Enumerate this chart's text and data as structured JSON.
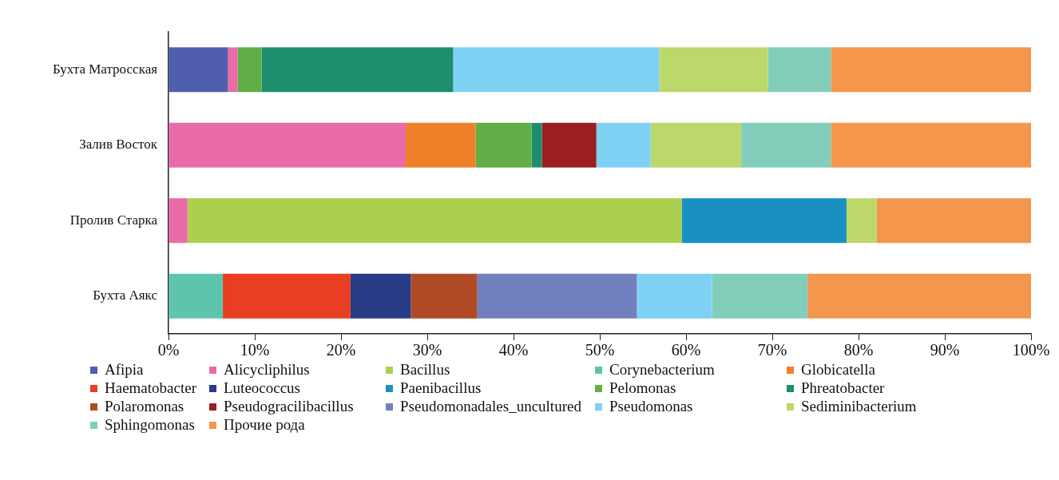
{
  "chart_data": {
    "type": "bar",
    "orientation": "horizontal",
    "stacked": true,
    "categories": [
      "Бухта Матросская",
      "Залив Восток",
      "Пролив Старка",
      "Бухта Аякс"
    ],
    "xlim": [
      0,
      100
    ],
    "xticks": [
      {
        "value": 0,
        "label": "0%"
      },
      {
        "value": 10,
        "label": "10%"
      },
      {
        "value": 20,
        "label": "20%"
      },
      {
        "value": 30,
        "label": "30%"
      },
      {
        "value": 40,
        "label": "40%"
      },
      {
        "value": 50,
        "label": "50%"
      },
      {
        "value": 60,
        "label": "60%"
      },
      {
        "value": 70,
        "label": "70%"
      },
      {
        "value": 80,
        "label": "80%"
      },
      {
        "value": 90,
        "label": "90%"
      },
      {
        "value": 100,
        "label": "100%"
      }
    ],
    "grid": false,
    "legend": "bottom",
    "series": [
      {
        "name": "Afipia",
        "color": "#4f5fad",
        "values": [
          6.9,
          null,
          null,
          null
        ]
      },
      {
        "name": "Alicycliphilus",
        "color": "#e96ba8",
        "values": [
          1.1,
          27.5,
          2.2,
          null
        ]
      },
      {
        "name": "Bacillus",
        "color": "#acd04e",
        "values": [
          null,
          null,
          57.3,
          null
        ]
      },
      {
        "name": "Corynebacterium",
        "color": "#5ec5ad",
        "values": [
          null,
          null,
          null,
          6.3
        ]
      },
      {
        "name": "Globicatella",
        "color": "#f07f2a",
        "values": [
          null,
          8.1,
          null,
          null
        ]
      },
      {
        "name": "Haematobacter",
        "color": "#e83e24",
        "values": [
          null,
          null,
          null,
          14.8
        ]
      },
      {
        "name": "Luteococcus",
        "color": "#283b85",
        "values": [
          null,
          null,
          null,
          7.0
        ]
      },
      {
        "name": "Paenibacillus",
        "color": "#1a8fc2",
        "values": [
          null,
          null,
          19.1,
          null
        ]
      },
      {
        "name": "Pelomonas",
        "color": "#62ad46",
        "values": [
          2.8,
          6.5,
          null,
          null
        ]
      },
      {
        "name": "Phreatobacter",
        "color": "#1d8d6e",
        "values": [
          22.2,
          1.2,
          null,
          null
        ]
      },
      {
        "name": "Polaromonas",
        "color": "#b04a26",
        "values": [
          null,
          null,
          null,
          7.7
        ]
      },
      {
        "name": "Pseudogracilibacillus",
        "color": "#9b1f20",
        "values": [
          null,
          6.3,
          null,
          null
        ]
      },
      {
        "name": "Pseudomonadales_uncultured",
        "color": "#7180bf",
        "values": [
          null,
          null,
          null,
          18.5
        ]
      },
      {
        "name": "Pseudomonas",
        "color": "#7fd1f3",
        "values": [
          23.9,
          6.3,
          null,
          8.7
        ]
      },
      {
        "name": "Sediminibacterium",
        "color": "#bcd76a",
        "values": [
          12.6,
          10.5,
          3.5,
          null
        ]
      },
      {
        "name": "Sphingomonas",
        "color": "#83cdbb",
        "values": [
          7.3,
          10.4,
          null,
          11.1
        ]
      },
      {
        "name": "Прочие рода",
        "color": "#f4964c",
        "values": [
          23.2,
          23.2,
          17.9,
          25.9
        ]
      }
    ]
  }
}
